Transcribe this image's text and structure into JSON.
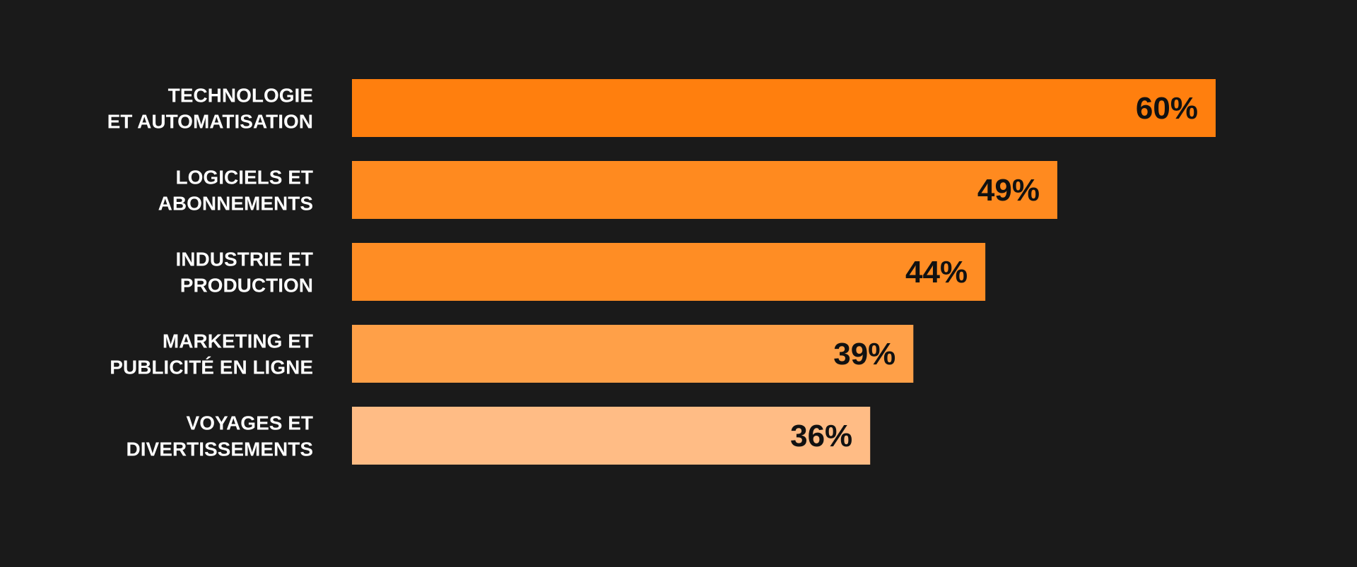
{
  "chart_data": {
    "type": "bar",
    "orientation": "horizontal",
    "title": "",
    "xlabel": "",
    "ylabel": "",
    "grid": false,
    "xlim": [
      0,
      60
    ],
    "categories": [
      [
        "TECHNOLOGIE",
        "ET AUTOMATISATION"
      ],
      [
        "LOGICIELS ET",
        "ABONNEMENTS"
      ],
      [
        "INDUSTRIE ET",
        "PRODUCTION"
      ],
      [
        "MARKETING ET",
        "PUBLICITÉ EN LIGNE"
      ],
      [
        "VOYAGES ET",
        "DIVERTISSEMENTS"
      ]
    ],
    "values": [
      60,
      49,
      44,
      39,
      36
    ],
    "value_labels": [
      "60%",
      "49%",
      "44%",
      "39%",
      "36%"
    ],
    "colors": [
      "#ff7f0e",
      "#ff8a1f",
      "#ff8d24",
      "#ffa048",
      "#ffbc85"
    ],
    "background": "#1a1a1a"
  }
}
